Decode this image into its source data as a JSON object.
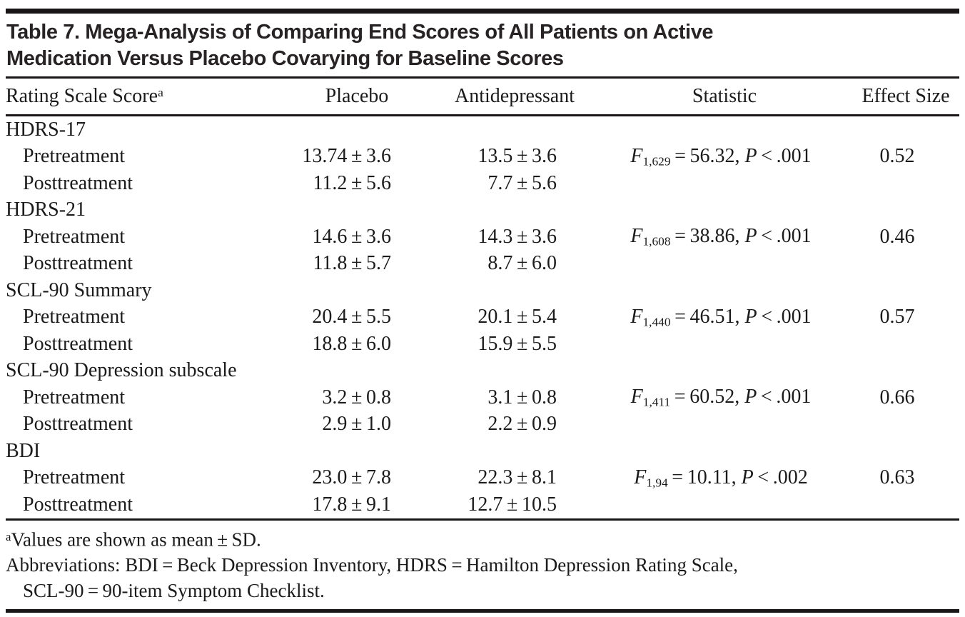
{
  "title": {
    "line1": "Table 7. Mega-Analysis of Comparing End Scores of All Patients on Active",
    "line2": "Medication Versus Placebo Covarying for Baseline Scores"
  },
  "header": {
    "rating_scale": "Rating Scale Score",
    "rating_scale_marker": "a",
    "placebo": "Placebo",
    "antidepressant": "Antidepressant",
    "statistic": "Statistic",
    "effect_size": "Effect Size"
  },
  "groups": [
    {
      "label": "HDRS-17",
      "rows": [
        {
          "label": "Pretreatment",
          "placebo": "13.74 ± 3.6",
          "antidepressant": "13.5 ± 3.6",
          "statistic": {
            "f": "F",
            "df": "1,629",
            "rest": " = 56.32, ",
            "p": "P",
            "p_rest": " < .001"
          },
          "effect_size": "0.52"
        },
        {
          "label": "Posttreatment",
          "placebo": "11.2 ± 5.6",
          "antidepressant": "7.7 ± 5.6",
          "statistic": null,
          "effect_size": ""
        }
      ]
    },
    {
      "label": "HDRS-21",
      "rows": [
        {
          "label": "Pretreatment",
          "placebo": "14.6 ± 3.6",
          "antidepressant": "14.3 ± 3.6",
          "statistic": {
            "f": "F",
            "df": "1,608",
            "rest": " = 38.86, ",
            "p": "P",
            "p_rest": " < .001"
          },
          "effect_size": "0.46"
        },
        {
          "label": "Posttreatment",
          "placebo": "11.8 ± 5.7",
          "antidepressant": "8.7 ± 6.0",
          "statistic": null,
          "effect_size": ""
        }
      ]
    },
    {
      "label": "SCL-90 Summary",
      "rows": [
        {
          "label": "Pretreatment",
          "placebo": "20.4 ± 5.5",
          "antidepressant": "20.1 ± 5.4",
          "statistic": {
            "f": "F",
            "df": "1,440",
            "rest": " = 46.51, ",
            "p": "P",
            "p_rest": " < .001"
          },
          "effect_size": "0.57"
        },
        {
          "label": "Posttreatment",
          "placebo": "18.8 ± 6.0",
          "antidepressant": "15.9 ± 5.5",
          "statistic": null,
          "effect_size": ""
        }
      ]
    },
    {
      "label": "SCL-90 Depression subscale",
      "rows": [
        {
          "label": "Pretreatment",
          "placebo": "3.2 ± 0.8",
          "antidepressant": "3.1 ± 0.8",
          "statistic": {
            "f": "F",
            "df": "1,411",
            "rest": " = 60.52, ",
            "p": "P",
            "p_rest": " < .001"
          },
          "effect_size": "0.66"
        },
        {
          "label": "Posttreatment",
          "placebo": "2.9 ± 1.0",
          "antidepressant": "2.2 ± 0.9",
          "statistic": null,
          "effect_size": ""
        }
      ]
    },
    {
      "label": "BDI",
      "rows": [
        {
          "label": "Pretreatment",
          "placebo": "23.0 ± 7.8",
          "antidepressant": "22.3 ± 8.1",
          "statistic": {
            "f": "F",
            "df": "1,94",
            "rest": " = 10.11, ",
            "p": "P",
            "p_rest": " < .002"
          },
          "effect_size": "0.63"
        },
        {
          "label": "Posttreatment",
          "placebo": "17.8 ± 9.1",
          "antidepressant": "12.7 ± 10.5",
          "statistic": null,
          "effect_size": ""
        }
      ]
    }
  ],
  "footnotes": {
    "marker": "a",
    "values_note": "Values are shown as mean ± SD.",
    "abbrev_line1": "Abbreviations: BDI = Beck Depression Inventory, HDRS = Hamilton Depression Rating Scale,",
    "abbrev_line2": "SCL-90 = 90-item Symptom Checklist."
  }
}
